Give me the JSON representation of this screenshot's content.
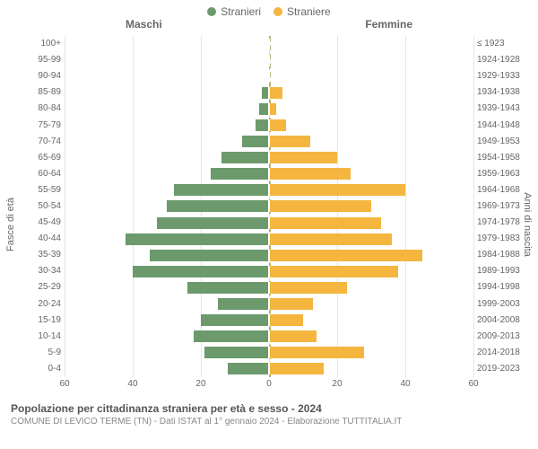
{
  "legend": {
    "male": {
      "label": "Stranieri",
      "color": "#6c9a6c"
    },
    "female": {
      "label": "Straniere",
      "color": "#f4b63f"
    }
  },
  "headers": {
    "left": "Maschi",
    "right": "Femmine"
  },
  "axis_labels": {
    "left": "Fasce di età",
    "right": "Anni di nascita"
  },
  "chart": {
    "type": "population-pyramid",
    "xlim": 60,
    "xticks": [
      60,
      40,
      20,
      0,
      20,
      40,
      60
    ],
    "background_color": "#ffffff",
    "grid_color": "#e5e5e5",
    "centerline_color": "#8a8a2a",
    "bar_border": "#ffffff",
    "rows": [
      {
        "age": "100+",
        "birth": "≤ 1923",
        "m": 0,
        "f": 0
      },
      {
        "age": "95-99",
        "birth": "1924-1928",
        "m": 0,
        "f": 0
      },
      {
        "age": "90-94",
        "birth": "1929-1933",
        "m": 0,
        "f": 0
      },
      {
        "age": "85-89",
        "birth": "1934-1938",
        "m": 2,
        "f": 4
      },
      {
        "age": "80-84",
        "birth": "1939-1943",
        "m": 3,
        "f": 2
      },
      {
        "age": "75-79",
        "birth": "1944-1948",
        "m": 4,
        "f": 5
      },
      {
        "age": "70-74",
        "birth": "1949-1953",
        "m": 8,
        "f": 12
      },
      {
        "age": "65-69",
        "birth": "1954-1958",
        "m": 14,
        "f": 20
      },
      {
        "age": "60-64",
        "birth": "1959-1963",
        "m": 17,
        "f": 24
      },
      {
        "age": "55-59",
        "birth": "1964-1968",
        "m": 28,
        "f": 40
      },
      {
        "age": "50-54",
        "birth": "1969-1973",
        "m": 30,
        "f": 30
      },
      {
        "age": "45-49",
        "birth": "1974-1978",
        "m": 33,
        "f": 33
      },
      {
        "age": "40-44",
        "birth": "1979-1983",
        "m": 42,
        "f": 36
      },
      {
        "age": "35-39",
        "birth": "1984-1988",
        "m": 35,
        "f": 45
      },
      {
        "age": "30-34",
        "birth": "1989-1993",
        "m": 40,
        "f": 38
      },
      {
        "age": "25-29",
        "birth": "1994-1998",
        "m": 24,
        "f": 23
      },
      {
        "age": "20-24",
        "birth": "1999-2003",
        "m": 15,
        "f": 13
      },
      {
        "age": "15-19",
        "birth": "2004-2008",
        "m": 20,
        "f": 10
      },
      {
        "age": "10-14",
        "birth": "2009-2013",
        "m": 22,
        "f": 14
      },
      {
        "age": "5-9",
        "birth": "2014-2018",
        "m": 19,
        "f": 28
      },
      {
        "age": "0-4",
        "birth": "2019-2023",
        "m": 12,
        "f": 16
      }
    ]
  },
  "caption": {
    "main": "Popolazione per cittadinanza straniera per età e sesso - 2024",
    "sub": "COMUNE DI LEVICO TERME (TN) - Dati ISTAT al 1° gennaio 2024 - Elaborazione TUTTITALIA.IT"
  }
}
